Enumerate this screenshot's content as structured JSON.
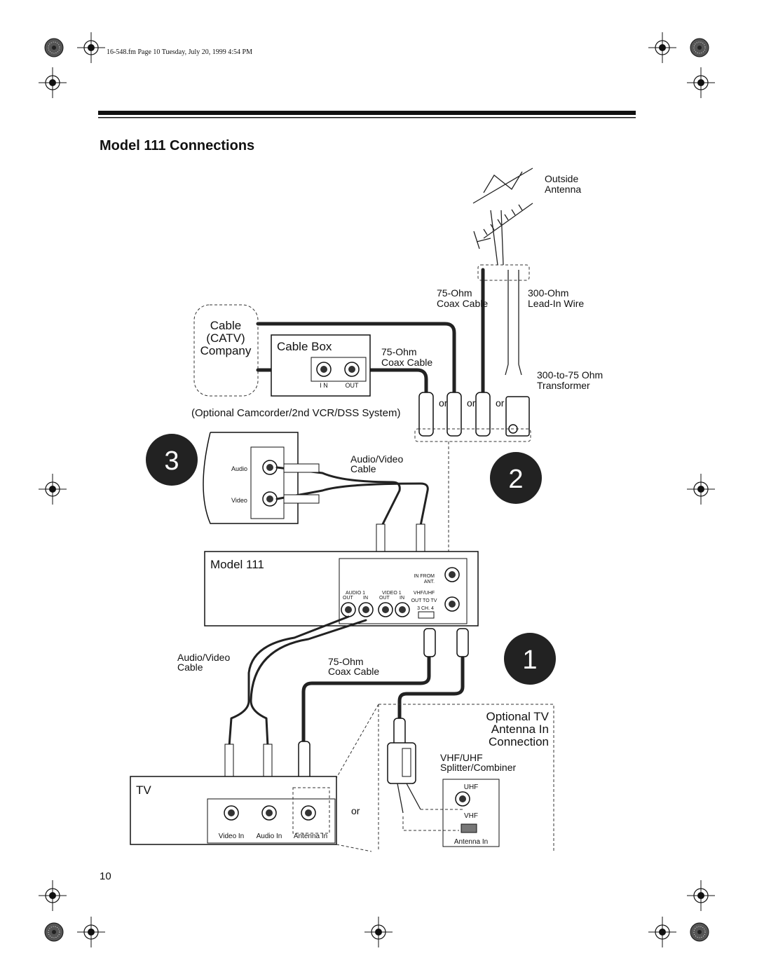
{
  "header": {
    "file_info": "16-548.fm  Page 10  Tuesday, July 20, 1999  4:54 PM"
  },
  "title": "Model 111 Connections",
  "diagram": {
    "outside_antenna": [
      "Outside",
      "Antenna"
    ],
    "antenna_coax": [
      "75-Ohm",
      "Coax Cable"
    ],
    "lead_in_wire": [
      "300-Ohm",
      "Lead-In Wire"
    ],
    "cable_company": [
      "Cable",
      "(CATV)",
      "Company"
    ],
    "cable_box": {
      "label": "Cable Box",
      "in": "I N",
      "out": "OUT"
    },
    "cable_box_coax": [
      "75-Ohm",
      "Coax Cable"
    ],
    "transformer": [
      "300-to-75 Ohm",
      "Transformer"
    ],
    "or_labels": [
      "or",
      "or",
      "or"
    ],
    "optional_system": "(Optional Camcorder/2nd VCR/DSS System)",
    "step_3": "3",
    "camcorder_jacks": [
      "Audio",
      "Video"
    ],
    "av_cable_top": [
      "Audio/Video",
      "Cable"
    ],
    "step_2": "2",
    "model": {
      "label": "Model 111",
      "in_from_ant": [
        "IN FROM",
        "ANT."
      ],
      "audio": [
        "AUDIO 1",
        "OUT",
        "IN"
      ],
      "video": [
        "VIDEO 1",
        "OUT",
        "IN"
      ],
      "out_to_tv": [
        "VHF/UHF",
        "OUT TO TV"
      ],
      "channel": "3  CH. 4"
    },
    "av_cable_bottom": [
      "Audio/Video",
      "Cable"
    ],
    "coax_bottom": [
      "75-Ohm",
      "Coax Cable"
    ],
    "step_1": "1",
    "optional_tv": [
      "Optional TV",
      "Antenna In",
      "Connection"
    ],
    "splitter": [
      "VHF/UHF",
      "Splitter/Combiner"
    ],
    "tv_antenna_panel": [
      "UHF",
      "VHF",
      "Antenna In"
    ],
    "tv": {
      "label": "TV",
      "jacks": [
        "Video In",
        "Audio In",
        "Antenna In"
      ]
    },
    "or_tv": "or"
  },
  "page_number": "10"
}
